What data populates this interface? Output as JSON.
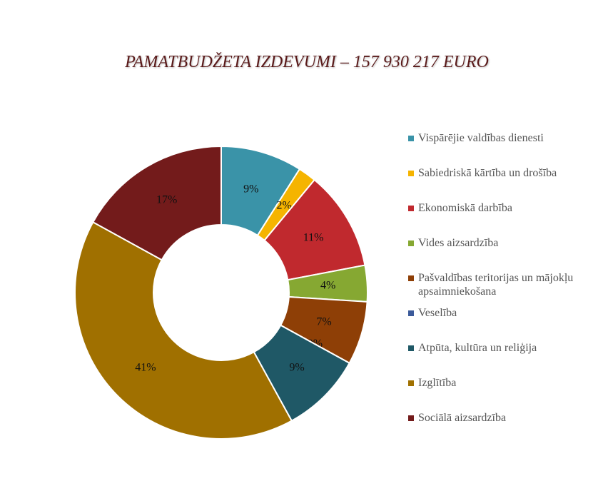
{
  "chart_data": {
    "type": "donut",
    "title": "PAMATBUDŽETA IZDEVUMI – 157 930 217 EURO",
    "categories": [
      "Vispārējie valdības dienesti",
      "Sabiedriskā kārtība un drošība",
      "Ekonomiskā darbība",
      "Vides aizsardzība",
      "Pašvaldības teritorijas un mājokļu apsaimniekošana",
      "Veselība",
      "Atpūta, kultūra un reliģija",
      "Izglītība",
      "Sociālā aizsardzība"
    ],
    "values": [
      9,
      2,
      11,
      4,
      7,
      0,
      9,
      41,
      17
    ],
    "value_labels": [
      "9%",
      "2%",
      "11%",
      "4%",
      "7%",
      "0%",
      "9%",
      "41%",
      "17%"
    ],
    "colors": [
      "#3a93a8",
      "#f5b400",
      "#c0292e",
      "#86a832",
      "#8e3f06",
      "#3b5a9a",
      "#1f5866",
      "#a07000",
      "#731b1b"
    ],
    "legend": "right"
  }
}
